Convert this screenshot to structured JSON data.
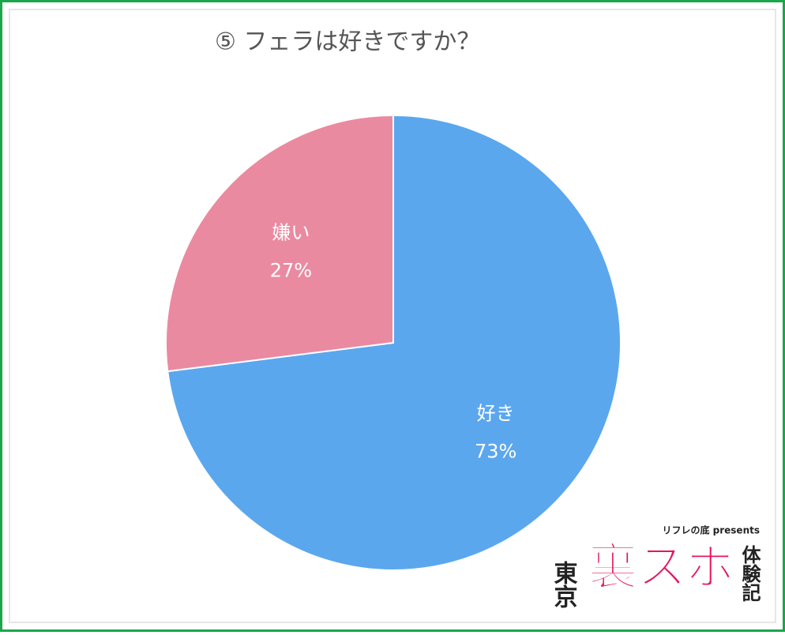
{
  "chart_data": {
    "type": "pie",
    "title": "⑤ フェラは好きですか？",
    "categories": [
      "好き",
      "嫌い"
    ],
    "values": [
      73,
      27
    ],
    "value_labels": [
      "73%",
      "27%"
    ],
    "colors": [
      "#5ba7ee",
      "#ea8aa1"
    ]
  },
  "logo": {
    "tagline": "リフレの底 presents",
    "left": "東京",
    "main": "裏スポ",
    "right": "体験記"
  }
}
